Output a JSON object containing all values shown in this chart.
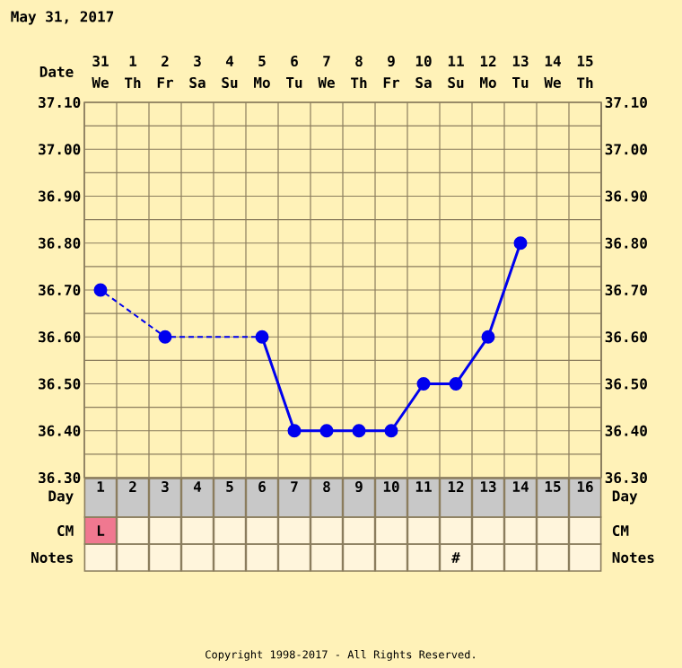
{
  "chart_data": {
    "type": "line",
    "title": "May 31, 2017",
    "xlabel": "Day",
    "categories": [
      "1",
      "2",
      "3",
      "4",
      "5",
      "6",
      "7",
      "8",
      "9",
      "10",
      "11",
      "12",
      "13",
      "14",
      "15",
      "16"
    ],
    "series": [
      {
        "color": "#0000ee",
        "values": [
          36.7,
          null,
          36.6,
          null,
          null,
          36.6,
          36.4,
          36.4,
          36.4,
          36.4,
          36.5,
          36.5,
          36.6,
          36.8,
          null,
          null
        ]
      }
    ],
    "ylim": [
      36.3,
      37.1
    ],
    "yticks": [
      {
        "value": 36.3,
        "label": "36.30"
      },
      {
        "value": 36.35,
        "label": null
      },
      {
        "value": 36.4,
        "label": "36.40"
      },
      {
        "value": 36.45,
        "label": null
      },
      {
        "value": 36.5,
        "label": "36.50"
      },
      {
        "value": 36.55,
        "label": null
      },
      {
        "value": 36.6,
        "label": "36.60"
      },
      {
        "value": 36.65,
        "label": null
      },
      {
        "value": 36.7,
        "label": "36.70"
      },
      {
        "value": 36.75,
        "label": null
      },
      {
        "value": 36.8,
        "label": "36.80"
      },
      {
        "value": 36.85,
        "label": null
      },
      {
        "value": 36.9,
        "label": "36.90"
      },
      {
        "value": 36.95,
        "label": null
      },
      {
        "value": 37.0,
        "label": "37.00"
      },
      {
        "value": 37.05,
        "label": null
      },
      {
        "value": 37.1,
        "label": "37.10"
      }
    ],
    "y2lim": [
      36.3,
      37.1
    ],
    "y2ticks": [
      {
        "value": 36.3,
        "label": "36.30"
      },
      {
        "value": 36.4,
        "label": "36.40"
      },
      {
        "value": 36.5,
        "label": "36.50"
      },
      {
        "value": 36.6,
        "label": "36.60"
      },
      {
        "value": 36.7,
        "label": "36.70"
      },
      {
        "value": 36.8,
        "label": "36.80"
      },
      {
        "value": 36.9,
        "label": "36.90"
      },
      {
        "value": 37.0,
        "label": "37.00"
      },
      {
        "value": 37.1,
        "label": "37.10"
      }
    ],
    "grid": true,
    "marker": "circle",
    "annotations": [
      "Date",
      "31",
      "1",
      "2",
      "3",
      "4",
      "5",
      "6",
      "7",
      "8",
      "9",
      "10",
      "11",
      "12",
      "13",
      "14",
      "15",
      "We",
      "Th",
      "Fr",
      "Sa",
      "Su",
      "Mo",
      "Tu",
      "We",
      "Th",
      "Fr",
      "Sa",
      "Su",
      "Mo",
      "Tu",
      "We",
      "Th",
      "CM",
      "Notes",
      "L",
      "#",
      "Copyright 1998-2017 - All Rights Reserved."
    ]
  }
}
